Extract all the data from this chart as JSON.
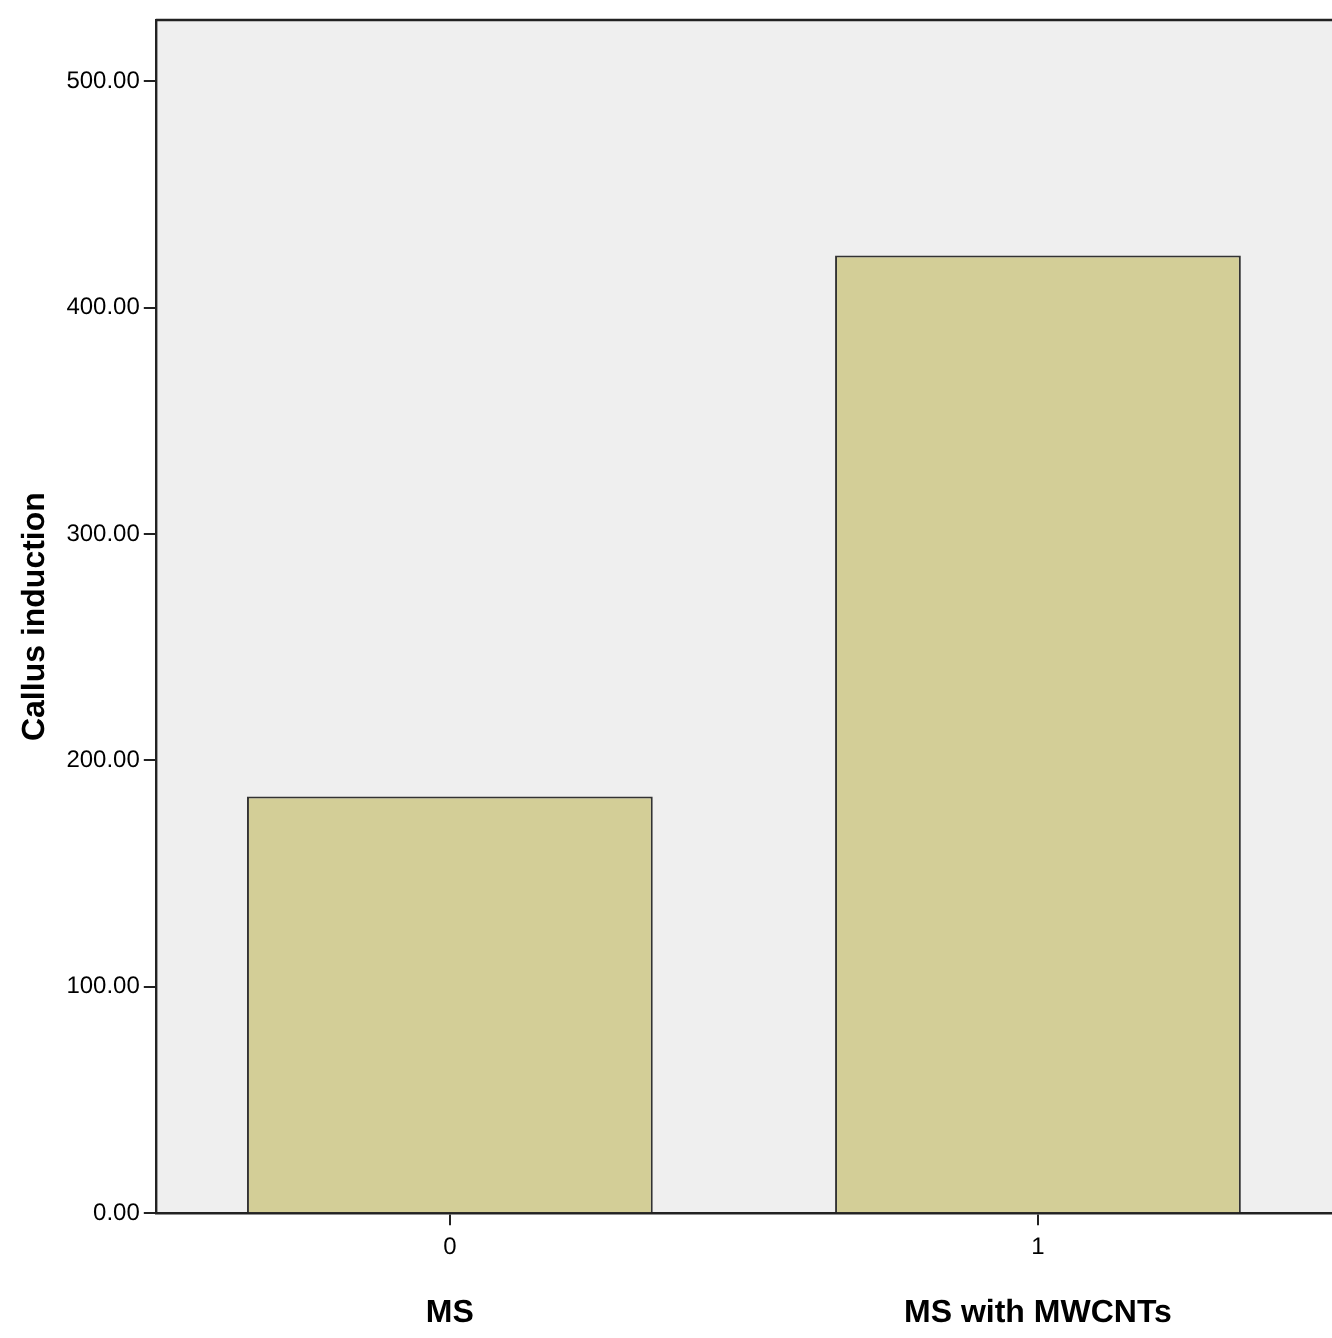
{
  "chart_data": {
    "type": "bar",
    "ylabel": "Callus induction",
    "categories": [
      "0",
      "1"
    ],
    "values": [
      184,
      423
    ],
    "color": "#d3ce97",
    "ylim": [
      0,
      527
    ],
    "yticks": [
      {
        "value": 0,
        "label": "0.00"
      },
      {
        "value": 100,
        "label": "100.00"
      },
      {
        "value": 200,
        "label": "200.00"
      },
      {
        "value": 300,
        "label": "300.00"
      },
      {
        "value": 400,
        "label": "400.00"
      },
      {
        "value": 500,
        "label": "500.00"
      }
    ],
    "grid": false,
    "legend": false,
    "annotations": [
      "MS",
      "MS with MWCNTs"
    ]
  }
}
